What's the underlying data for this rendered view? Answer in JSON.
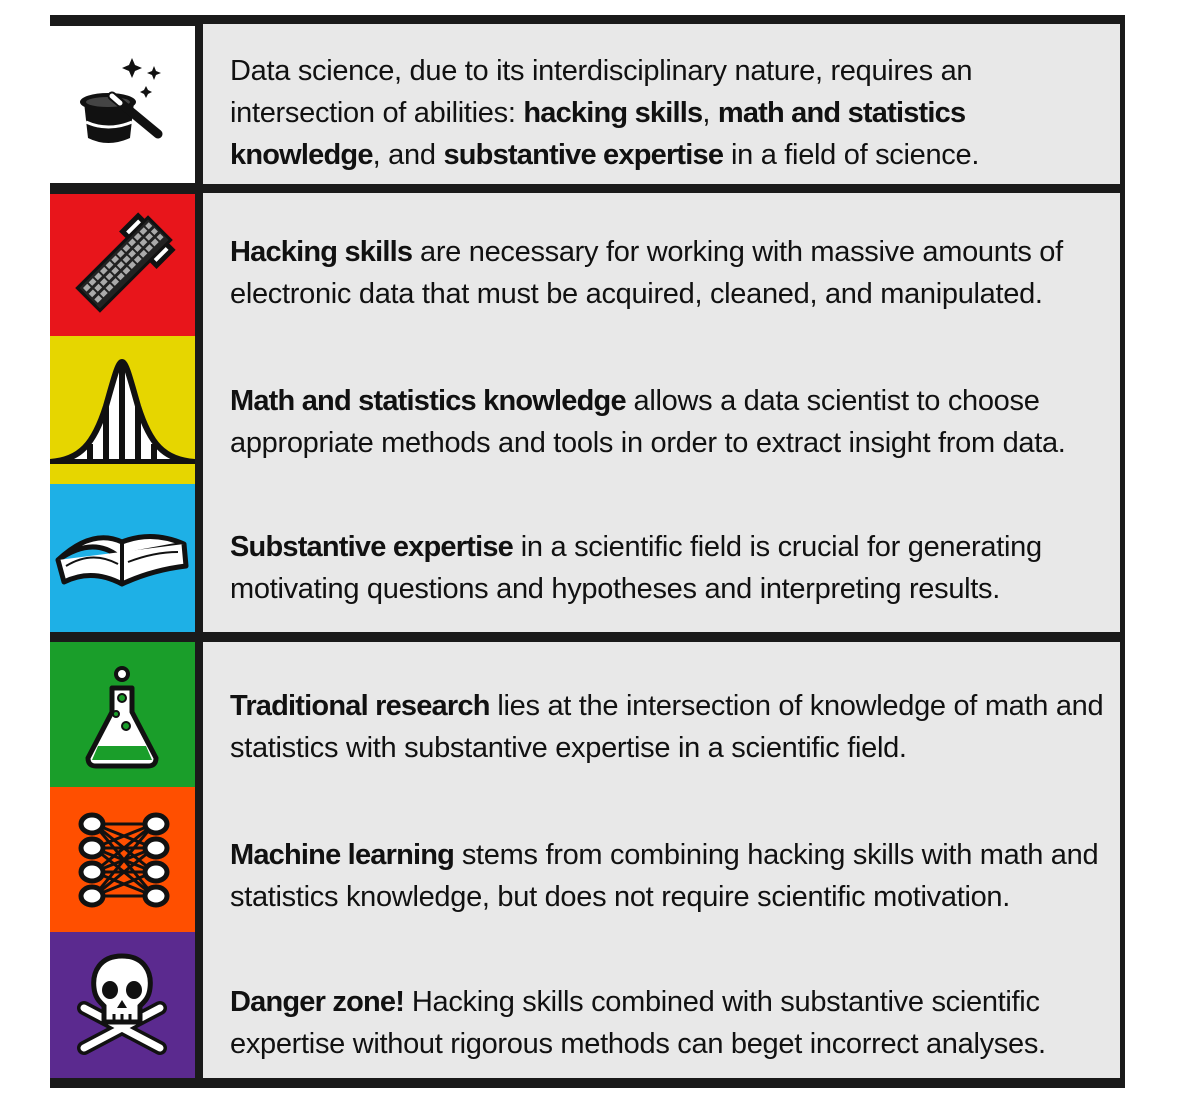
{
  "colors": {
    "frame": "#1a1a1a",
    "panel": "#e8e8e8",
    "intro_bg": "#ffffff",
    "hacking": "#e8151b",
    "math": "#e6d600",
    "substantive": "#1eb0e6",
    "research": "#1a9e2a",
    "machine": "#ff4f00",
    "danger": "#5b2a8f"
  },
  "rows": [
    {
      "id": "intro",
      "icon": "magic-hat-wand-icon",
      "text": [
        {
          "t": "Data science, due to its interdisciplinary nature, requires an intersection of abilities: ",
          "b": false
        },
        {
          "t": "hacking skills",
          "b": true
        },
        {
          "t": ", ",
          "b": false
        },
        {
          "t": "math and statistics knowledge",
          "b": true
        },
        {
          "t": ", and ",
          "b": false
        },
        {
          "t": "substantive expertise",
          "b": true
        },
        {
          "t": " in a field of science.",
          "b": false
        }
      ]
    },
    {
      "id": "hacking",
      "icon": "keyboard-hammer-icon",
      "text": [
        {
          "t": "Hacking skills",
          "b": true
        },
        {
          "t": " are necessary for working with massive amounts of electronic data that must be acquired, cleaned, and manipulated.",
          "b": false
        }
      ]
    },
    {
      "id": "math",
      "icon": "bell-curve-icon",
      "text": [
        {
          "t": "Math and statistics knowledge",
          "b": true
        },
        {
          "t": " allows a data scientist to choose appropriate methods and tools in order to extract insight from data.",
          "b": false
        }
      ]
    },
    {
      "id": "substantive",
      "icon": "open-book-icon",
      "text": [
        {
          "t": "Substantive expertise",
          "b": true
        },
        {
          "t": " in a scientific field is crucial for generating motivating questions and hypotheses and interpreting results.",
          "b": false
        }
      ]
    },
    {
      "id": "research",
      "icon": "flask-icon",
      "text": [
        {
          "t": "Traditional research",
          "b": true
        },
        {
          "t": " lies at the intersection of knowledge of math and statistics with substantive expertise in a scientific field.",
          "b": false
        }
      ]
    },
    {
      "id": "machine",
      "icon": "neural-network-icon",
      "text": [
        {
          "t": "Machine learning",
          "b": true
        },
        {
          "t": " stems from combining hacking skills with math and statistics knowledge, but does not require scientific motivation.",
          "b": false
        }
      ]
    },
    {
      "id": "danger",
      "icon": "skull-crossbones-icon",
      "text": [
        {
          "t": "Danger zone!",
          "b": true
        },
        {
          "t": " Hacking skills combined with substantive scientific expertise without rigorous methods can beget incorrect analyses.",
          "b": false
        }
      ]
    }
  ]
}
